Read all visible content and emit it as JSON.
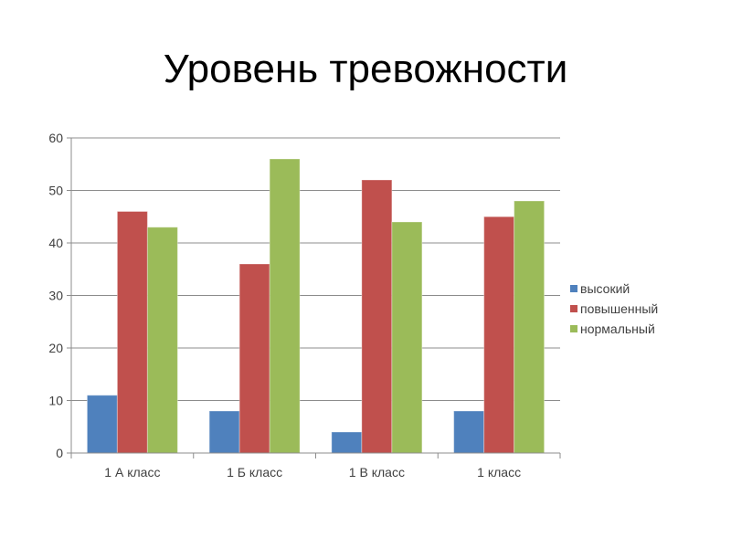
{
  "slide": {
    "title": "Уровень тревожности"
  },
  "chart_data": {
    "type": "bar",
    "title": "Уровень тревожности",
    "categories": [
      "1 А класс",
      "1 Б класс",
      "1 В класс",
      "1 класс"
    ],
    "series": [
      {
        "name": "высокий",
        "values": [
          11,
          8,
          4,
          8
        ],
        "color": "#4f81bd"
      },
      {
        "name": "повышенный",
        "values": [
          46,
          36,
          52,
          45
        ],
        "color": "#c0504d"
      },
      {
        "name": "нормальный",
        "values": [
          43,
          56,
          44,
          48
        ],
        "color": "#9bbb59"
      }
    ],
    "ylim": [
      0,
      60
    ],
    "yticks": [
      0,
      10,
      20,
      30,
      40,
      50,
      60
    ],
    "grid": true,
    "legend": "right"
  }
}
